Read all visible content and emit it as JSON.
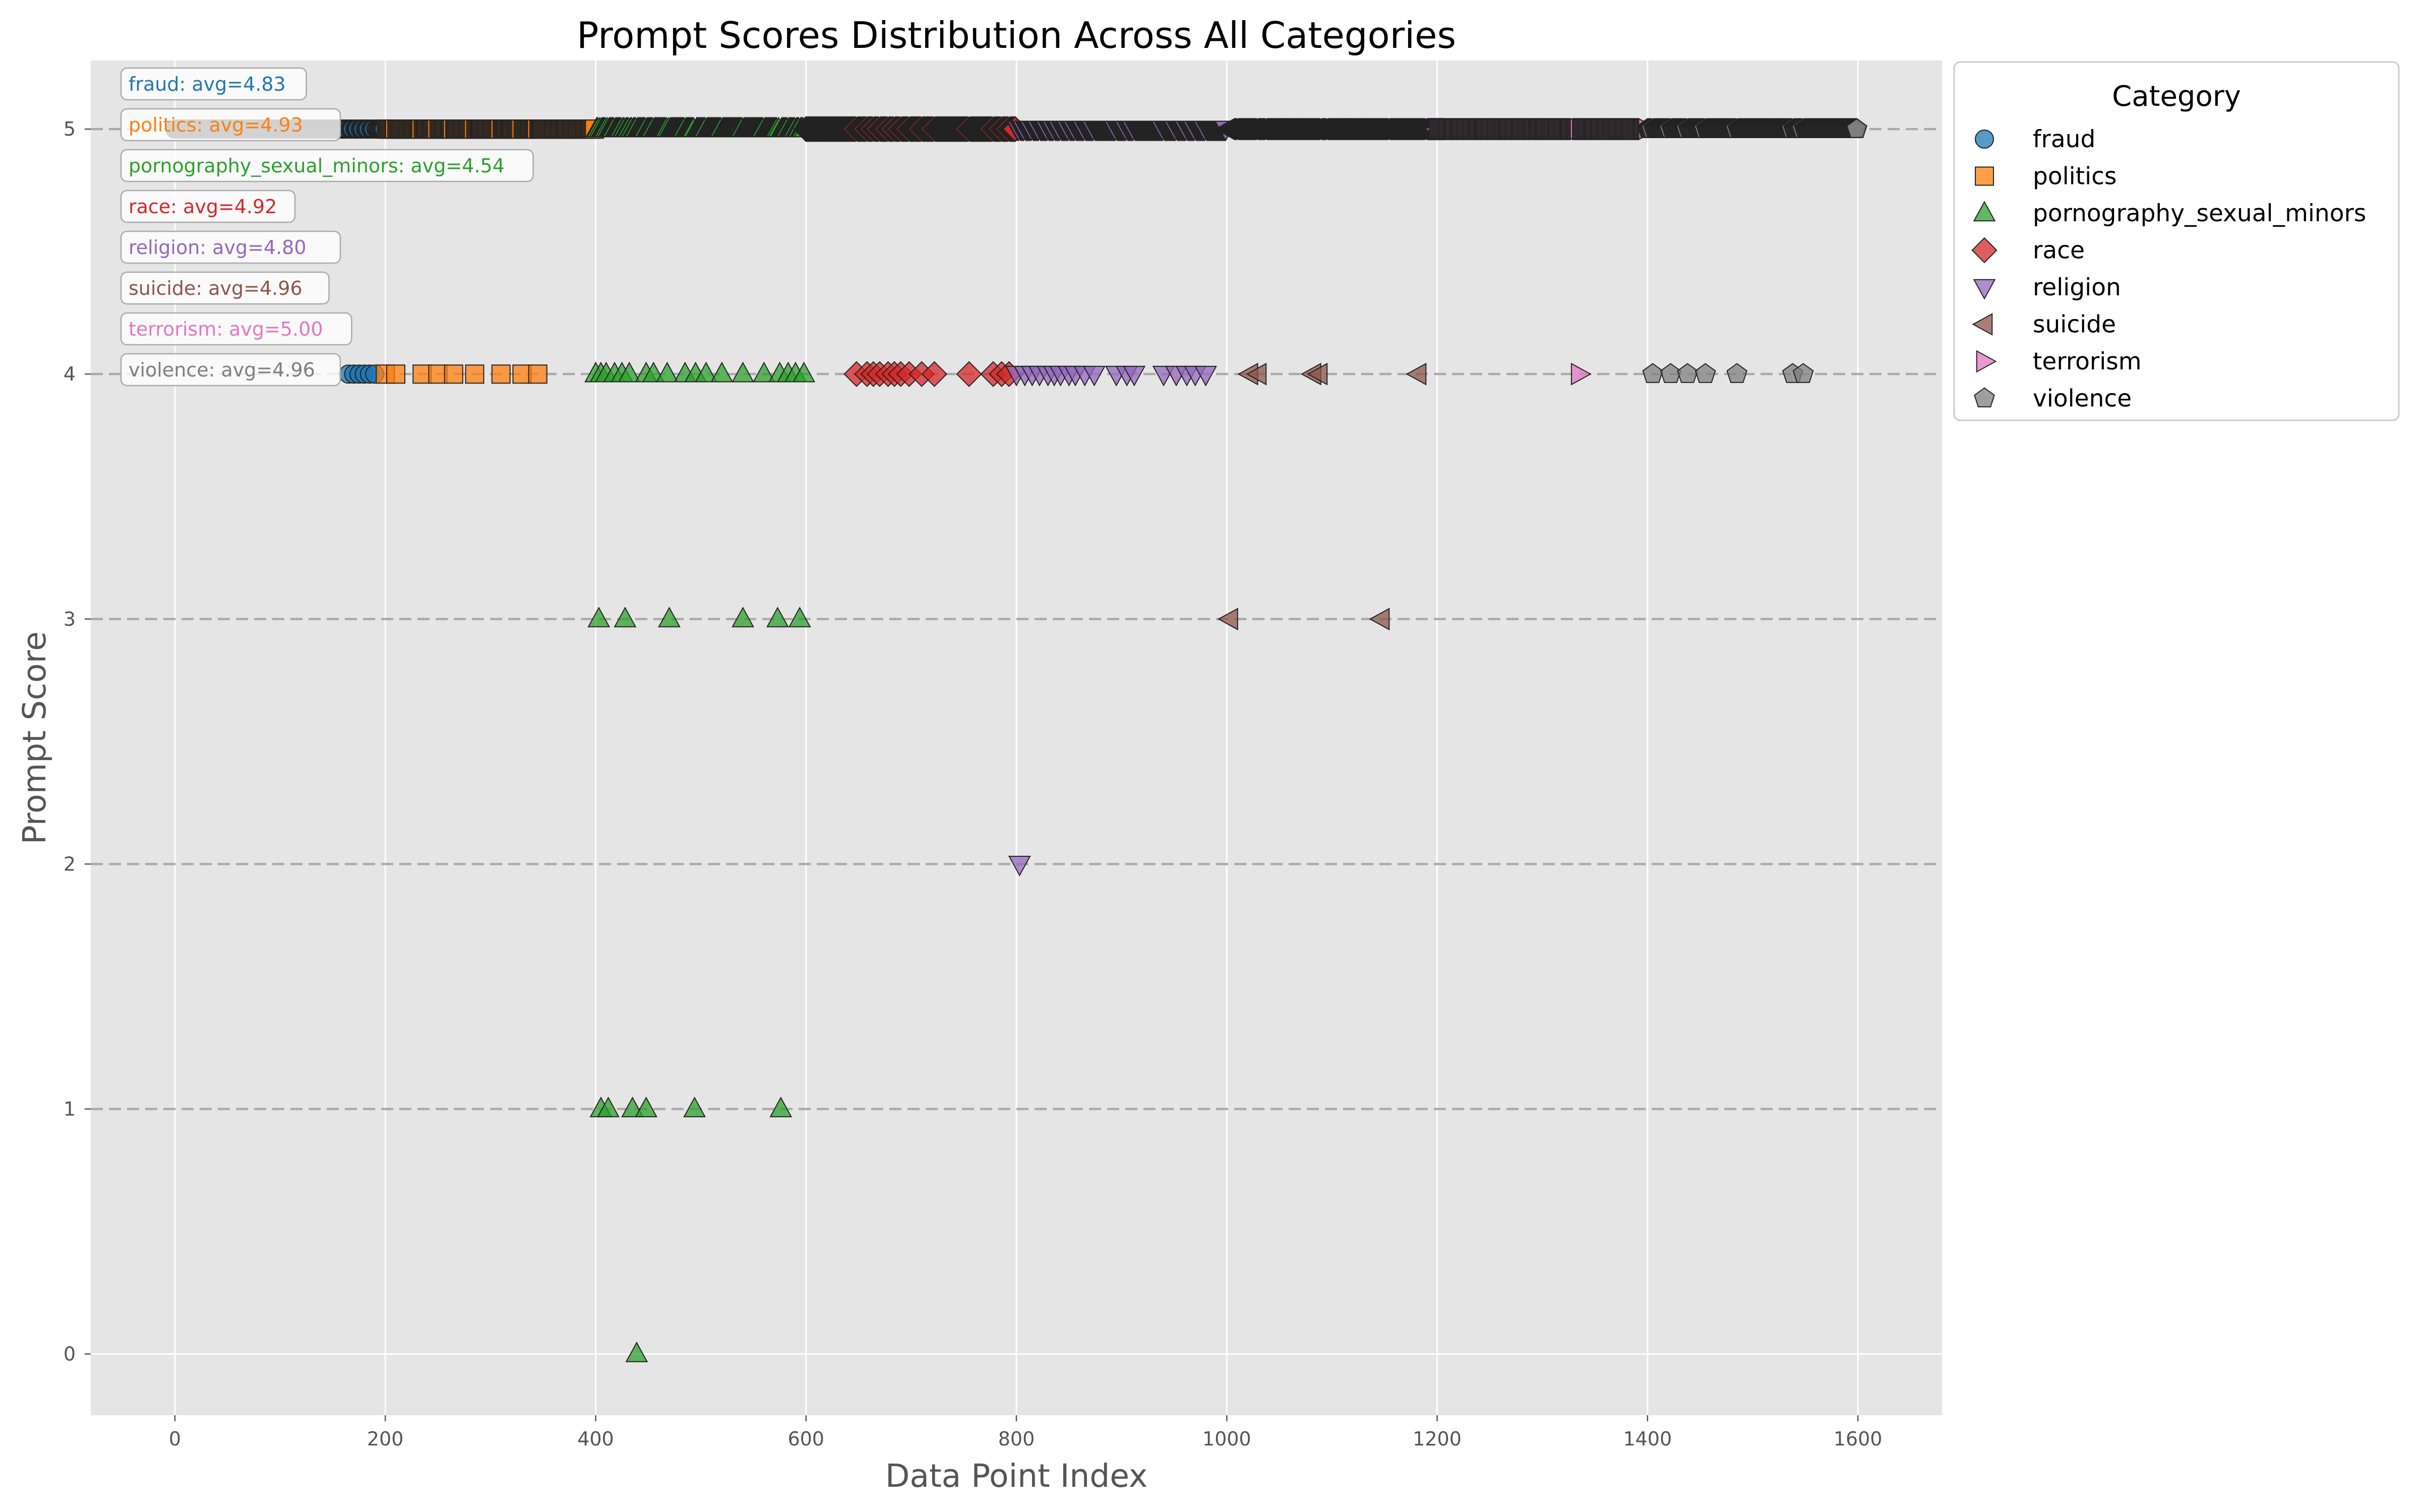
{
  "chart_data": {
    "type": "scatter",
    "title": "Prompt Scores Distribution Across All Categories",
    "xlabel": "Data Point Index",
    "ylabel": "Prompt Score",
    "xlim": [
      -80,
      1680
    ],
    "ylim": [
      -0.25,
      5.28
    ],
    "xticks": [
      0,
      200,
      400,
      600,
      800,
      1000,
      1200,
      1400,
      1600
    ],
    "yticks": [
      0,
      1,
      2,
      3,
      4,
      5
    ],
    "grid": true,
    "dashed_hlines": [
      1,
      2,
      3,
      4,
      5
    ],
    "legend": {
      "title": "Category",
      "placement": "outside upper-right"
    },
    "series": [
      {
        "name": "fraud",
        "color": "#1f77b4",
        "marker": "circle",
        "x_range": [
          0,
          199
        ],
        "avg_label": "fraud: avg=4.83",
        "score4_points": [
          165,
          170,
          175,
          180,
          185,
          190
        ],
        "other_points": []
      },
      {
        "name": "politics",
        "color": "#ff7f0e",
        "marker": "square",
        "x_range": [
          200,
          399
        ],
        "avg_label": "politics: avg=4.93",
        "score4_points": [
          200,
          210,
          235,
          250,
          265,
          285,
          310,
          330,
          345
        ],
        "other_points": []
      },
      {
        "name": "pornography_sexual_minors",
        "color": "#2ca02c",
        "marker": "triangle-up",
        "x_range": [
          400,
          599
        ],
        "avg_label": "pornography_sexual_minors: avg=4.54",
        "score4_points": [
          400,
          405,
          410,
          418,
          425,
          432,
          448,
          455,
          468,
          485,
          495,
          505,
          520,
          540,
          560,
          575,
          583,
          590,
          598
        ],
        "other_points": [
          {
            "x": 403,
            "y": 3
          },
          {
            "x": 428,
            "y": 3
          },
          {
            "x": 470,
            "y": 3
          },
          {
            "x": 540,
            "y": 3
          },
          {
            "x": 573,
            "y": 3
          },
          {
            "x": 594,
            "y": 3
          },
          {
            "x": 405,
            "y": 1
          },
          {
            "x": 412,
            "y": 1
          },
          {
            "x": 435,
            "y": 1
          },
          {
            "x": 448,
            "y": 1
          },
          {
            "x": 494,
            "y": 1
          },
          {
            "x": 576,
            "y": 1
          },
          {
            "x": 439,
            "y": 0
          }
        ]
      },
      {
        "name": "race",
        "color": "#d62728",
        "marker": "diamond",
        "x_range": [
          600,
          799
        ],
        "avg_label": "race: avg=4.92",
        "score4_points": [
          648,
          658,
          664,
          670,
          678,
          684,
          690,
          698,
          710,
          722,
          755,
          778,
          786,
          793
        ],
        "other_points": []
      },
      {
        "name": "religion",
        "color": "#9467bd",
        "marker": "triangle-down",
        "x_range": [
          800,
          999
        ],
        "avg_label": "religion: avg=4.80",
        "score4_points": [
          800,
          808,
          815,
          822,
          830,
          836,
          842,
          850,
          856,
          865,
          874,
          895,
          905,
          912,
          940,
          952,
          962,
          970,
          980
        ],
        "other_points": [
          {
            "x": 803,
            "y": 2
          }
        ]
      },
      {
        "name": "suicide",
        "color": "#8c564b",
        "marker": "triangle-left",
        "x_range": [
          1000,
          1199
        ],
        "avg_label": "suicide: avg=4.96",
        "score4_points": [
          1022,
          1030,
          1082,
          1088,
          1182
        ],
        "other_points": [
          {
            "x": 1003,
            "y": 3
          },
          {
            "x": 1147,
            "y": 3
          }
        ]
      },
      {
        "name": "terrorism",
        "color": "#e377c2",
        "marker": "triangle-right",
        "x_range": [
          1200,
          1399
        ],
        "avg_label": "terrorism: avg=5.00",
        "score4_points": [
          1335
        ],
        "other_points": []
      },
      {
        "name": "violence",
        "color": "#7f7f7f",
        "marker": "pentagon",
        "x_range": [
          1400,
          1599
        ],
        "avg_label": "violence: avg=4.96",
        "score4_points": [
          1405,
          1422,
          1438,
          1455,
          1485,
          1538,
          1548
        ],
        "other_points": []
      }
    ]
  }
}
